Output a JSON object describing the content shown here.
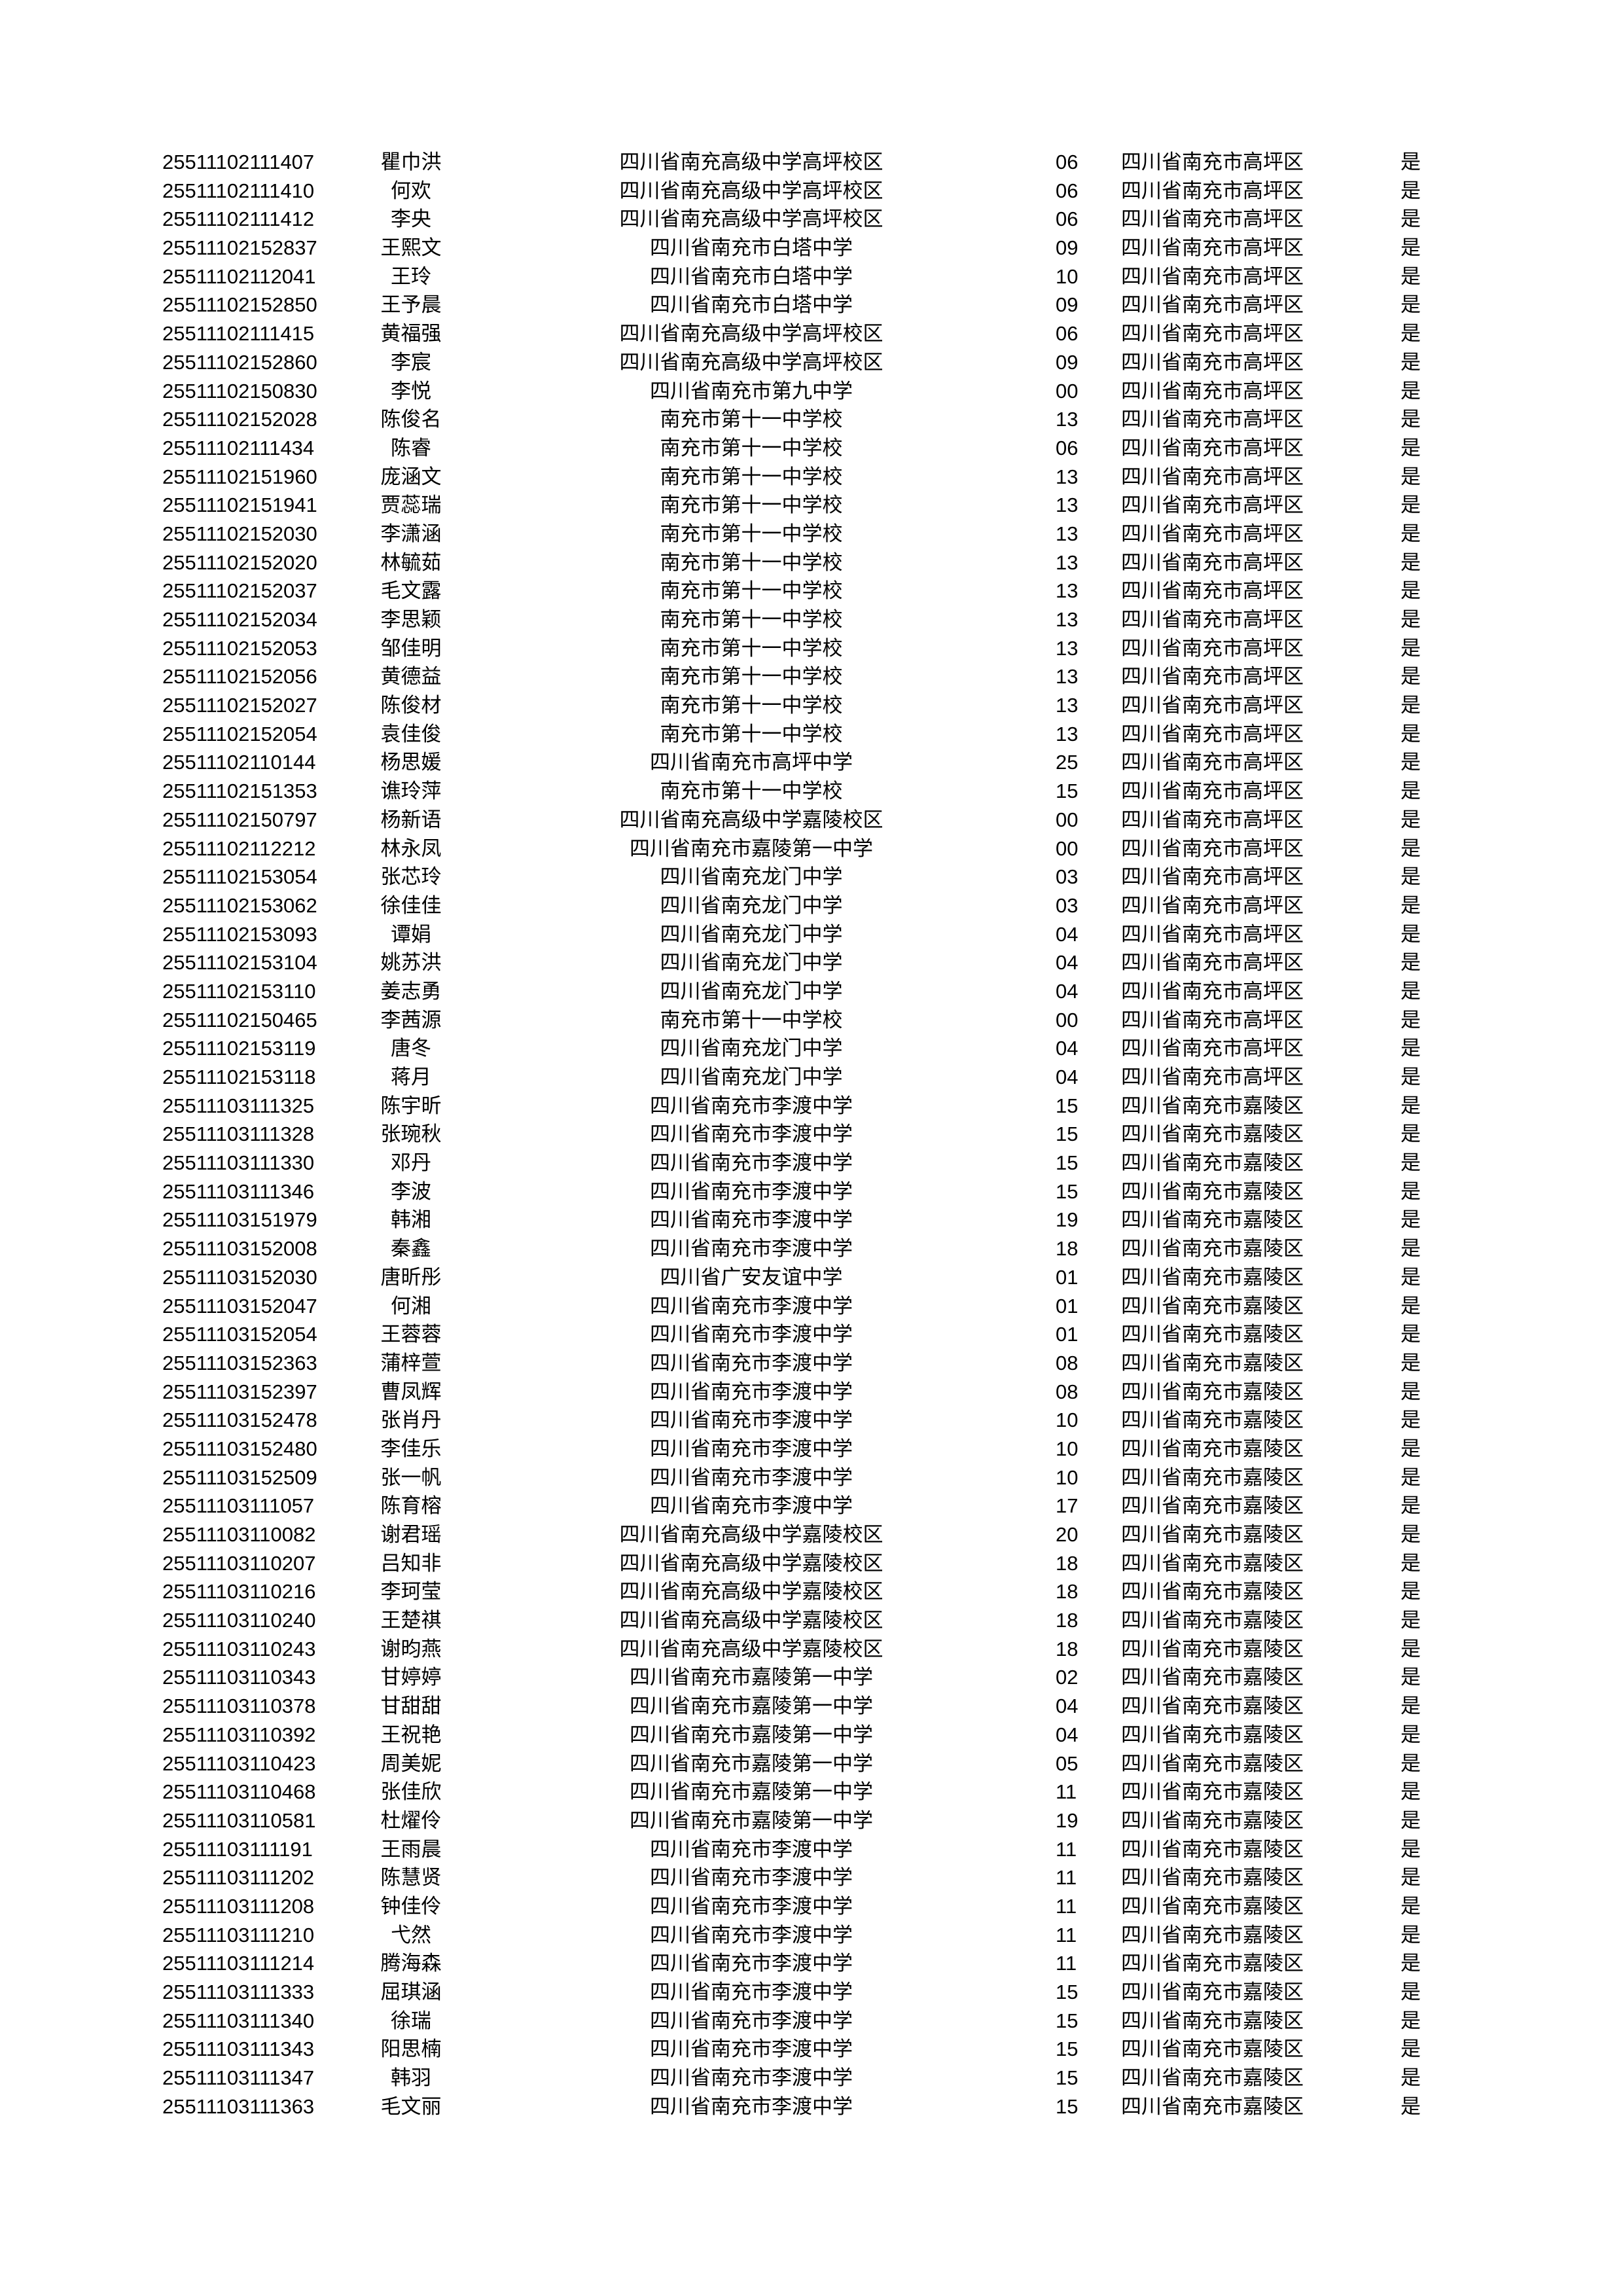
{
  "rows": [
    [
      "25511102111407",
      "瞿巾洪",
      "四川省南充高级中学高坪校区",
      "06",
      "四川省南充市高坪区",
      "是"
    ],
    [
      "25511102111410",
      "何欢",
      "四川省南充高级中学高坪校区",
      "06",
      "四川省南充市高坪区",
      "是"
    ],
    [
      "25511102111412",
      "李央",
      "四川省南充高级中学高坪校区",
      "06",
      "四川省南充市高坪区",
      "是"
    ],
    [
      "25511102152837",
      "王熙文",
      "四川省南充市白塔中学",
      "09",
      "四川省南充市高坪区",
      "是"
    ],
    [
      "25511102112041",
      "王玲",
      "四川省南充市白塔中学",
      "10",
      "四川省南充市高坪区",
      "是"
    ],
    [
      "25511102152850",
      "王予晨",
      "四川省南充市白塔中学",
      "09",
      "四川省南充市高坪区",
      "是"
    ],
    [
      "25511102111415",
      "黄福强",
      "四川省南充高级中学高坪校区",
      "06",
      "四川省南充市高坪区",
      "是"
    ],
    [
      "25511102152860",
      "李宸",
      "四川省南充高级中学高坪校区",
      "09",
      "四川省南充市高坪区",
      "是"
    ],
    [
      "25511102150830",
      "李悦",
      "四川省南充市第九中学",
      "00",
      "四川省南充市高坪区",
      "是"
    ],
    [
      "25511102152028",
      "陈俊名",
      "南充市第十一中学校",
      "13",
      "四川省南充市高坪区",
      "是"
    ],
    [
      "25511102111434",
      "陈睿",
      "南充市第十一中学校",
      "06",
      "四川省南充市高坪区",
      "是"
    ],
    [
      "25511102151960",
      "庞涵文",
      "南充市第十一中学校",
      "13",
      "四川省南充市高坪区",
      "是"
    ],
    [
      "25511102151941",
      "贾蕊瑞",
      "南充市第十一中学校",
      "13",
      "四川省南充市高坪区",
      "是"
    ],
    [
      "25511102152030",
      "李潇涵",
      "南充市第十一中学校",
      "13",
      "四川省南充市高坪区",
      "是"
    ],
    [
      "25511102152020",
      "林毓茹",
      "南充市第十一中学校",
      "13",
      "四川省南充市高坪区",
      "是"
    ],
    [
      "25511102152037",
      "毛文露",
      "南充市第十一中学校",
      "13",
      "四川省南充市高坪区",
      "是"
    ],
    [
      "25511102152034",
      "李思颖",
      "南充市第十一中学校",
      "13",
      "四川省南充市高坪区",
      "是"
    ],
    [
      "25511102152053",
      "邹佳明",
      "南充市第十一中学校",
      "13",
      "四川省南充市高坪区",
      "是"
    ],
    [
      "25511102152056",
      "黄德益",
      "南充市第十一中学校",
      "13",
      "四川省南充市高坪区",
      "是"
    ],
    [
      "25511102152027",
      "陈俊材",
      "南充市第十一中学校",
      "13",
      "四川省南充市高坪区",
      "是"
    ],
    [
      "25511102152054",
      "袁佳俊",
      "南充市第十一中学校",
      "13",
      "四川省南充市高坪区",
      "是"
    ],
    [
      "25511102110144",
      "杨思媛",
      "四川省南充市高坪中学",
      "25",
      "四川省南充市高坪区",
      "是"
    ],
    [
      "25511102151353",
      "谯玲萍",
      "南充市第十一中学校",
      "15",
      "四川省南充市高坪区",
      "是"
    ],
    [
      "25511102150797",
      "杨新语",
      "四川省南充高级中学嘉陵校区",
      "00",
      "四川省南充市高坪区",
      "是"
    ],
    [
      "25511102112212",
      "林永凤",
      "四川省南充市嘉陵第一中学",
      "00",
      "四川省南充市高坪区",
      "是"
    ],
    [
      "25511102153054",
      "张芯玲",
      "四川省南充龙门中学",
      "03",
      "四川省南充市高坪区",
      "是"
    ],
    [
      "25511102153062",
      "徐佳佳",
      "四川省南充龙门中学",
      "03",
      "四川省南充市高坪区",
      "是"
    ],
    [
      "25511102153093",
      "谭娟",
      "四川省南充龙门中学",
      "04",
      "四川省南充市高坪区",
      "是"
    ],
    [
      "25511102153104",
      "姚苏洪",
      "四川省南充龙门中学",
      "04",
      "四川省南充市高坪区",
      "是"
    ],
    [
      "25511102153110",
      "姜志勇",
      "四川省南充龙门中学",
      "04",
      "四川省南充市高坪区",
      "是"
    ],
    [
      "25511102150465",
      "李茜源",
      "南充市第十一中学校",
      "00",
      "四川省南充市高坪区",
      "是"
    ],
    [
      "25511102153119",
      "唐冬",
      "四川省南充龙门中学",
      "04",
      "四川省南充市高坪区",
      "是"
    ],
    [
      "25511102153118",
      "蒋月",
      "四川省南充龙门中学",
      "04",
      "四川省南充市高坪区",
      "是"
    ],
    [
      "25511103111325",
      "陈宇昕",
      "四川省南充市李渡中学",
      "15",
      "四川省南充市嘉陵区",
      "是"
    ],
    [
      "25511103111328",
      "张琬秋",
      "四川省南充市李渡中学",
      "15",
      "四川省南充市嘉陵区",
      "是"
    ],
    [
      "25511103111330",
      "邓丹",
      "四川省南充市李渡中学",
      "15",
      "四川省南充市嘉陵区",
      "是"
    ],
    [
      "25511103111346",
      "李波",
      "四川省南充市李渡中学",
      "15",
      "四川省南充市嘉陵区",
      "是"
    ],
    [
      "25511103151979",
      "韩湘",
      "四川省南充市李渡中学",
      "19",
      "四川省南充市嘉陵区",
      "是"
    ],
    [
      "25511103152008",
      "秦鑫",
      "四川省南充市李渡中学",
      "18",
      "四川省南充市嘉陵区",
      "是"
    ],
    [
      "25511103152030",
      "唐昕彤",
      "四川省广安友谊中学",
      "01",
      "四川省南充市嘉陵区",
      "是"
    ],
    [
      "25511103152047",
      "何湘",
      "四川省南充市李渡中学",
      "01",
      "四川省南充市嘉陵区",
      "是"
    ],
    [
      "25511103152054",
      "王蓉蓉",
      "四川省南充市李渡中学",
      "01",
      "四川省南充市嘉陵区",
      "是"
    ],
    [
      "25511103152363",
      "蒲梓萱",
      "四川省南充市李渡中学",
      "08",
      "四川省南充市嘉陵区",
      "是"
    ],
    [
      "25511103152397",
      "曹凤辉",
      "四川省南充市李渡中学",
      "08",
      "四川省南充市嘉陵区",
      "是"
    ],
    [
      "25511103152478",
      "张肖丹",
      "四川省南充市李渡中学",
      "10",
      "四川省南充市嘉陵区",
      "是"
    ],
    [
      "25511103152480",
      "李佳乐",
      "四川省南充市李渡中学",
      "10",
      "四川省南充市嘉陵区",
      "是"
    ],
    [
      "25511103152509",
      "张一帆",
      "四川省南充市李渡中学",
      "10",
      "四川省南充市嘉陵区",
      "是"
    ],
    [
      "25511103111057",
      "陈育榕",
      "四川省南充市李渡中学",
      "17",
      "四川省南充市嘉陵区",
      "是"
    ],
    [
      "25511103110082",
      "谢君瑶",
      "四川省南充高级中学嘉陵校区",
      "20",
      "四川省南充市嘉陵区",
      "是"
    ],
    [
      "25511103110207",
      "吕知非",
      "四川省南充高级中学嘉陵校区",
      "18",
      "四川省南充市嘉陵区",
      "是"
    ],
    [
      "25511103110216",
      "李珂莹",
      "四川省南充高级中学嘉陵校区",
      "18",
      "四川省南充市嘉陵区",
      "是"
    ],
    [
      "25511103110240",
      "王楚祺",
      "四川省南充高级中学嘉陵校区",
      "18",
      "四川省南充市嘉陵区",
      "是"
    ],
    [
      "25511103110243",
      "谢昀燕",
      "四川省南充高级中学嘉陵校区",
      "18",
      "四川省南充市嘉陵区",
      "是"
    ],
    [
      "25511103110343",
      "甘婷婷",
      "四川省南充市嘉陵第一中学",
      "02",
      "四川省南充市嘉陵区",
      "是"
    ],
    [
      "25511103110378",
      "甘甜甜",
      "四川省南充市嘉陵第一中学",
      "04",
      "四川省南充市嘉陵区",
      "是"
    ],
    [
      "25511103110392",
      "王祝艳",
      "四川省南充市嘉陵第一中学",
      "04",
      "四川省南充市嘉陵区",
      "是"
    ],
    [
      "25511103110423",
      "周美妮",
      "四川省南充市嘉陵第一中学",
      "05",
      "四川省南充市嘉陵区",
      "是"
    ],
    [
      "25511103110468",
      "张佳欣",
      "四川省南充市嘉陵第一中学",
      "11",
      "四川省南充市嘉陵区",
      "是"
    ],
    [
      "25511103110581",
      "杜燿伶",
      "四川省南充市嘉陵第一中学",
      "19",
      "四川省南充市嘉陵区",
      "是"
    ],
    [
      "25511103111191",
      "王雨晨",
      "四川省南充市李渡中学",
      "11",
      "四川省南充市嘉陵区",
      "是"
    ],
    [
      "25511103111202",
      "陈慧贤",
      "四川省南充市李渡中学",
      "11",
      "四川省南充市嘉陵区",
      "是"
    ],
    [
      "25511103111208",
      "钟佳伶",
      "四川省南充市李渡中学",
      "11",
      "四川省南充市嘉陵区",
      "是"
    ],
    [
      "25511103111210",
      "弋然",
      "四川省南充市李渡中学",
      "11",
      "四川省南充市嘉陵区",
      "是"
    ],
    [
      "25511103111214",
      "腾海森",
      "四川省南充市李渡中学",
      "11",
      "四川省南充市嘉陵区",
      "是"
    ],
    [
      "25511103111333",
      "屈琪涵",
      "四川省南充市李渡中学",
      "15",
      "四川省南充市嘉陵区",
      "是"
    ],
    [
      "25511103111340",
      "徐瑞",
      "四川省南充市李渡中学",
      "15",
      "四川省南充市嘉陵区",
      "是"
    ],
    [
      "25511103111343",
      "阳思楠",
      "四川省南充市李渡中学",
      "15",
      "四川省南充市嘉陵区",
      "是"
    ],
    [
      "25511103111347",
      "韩羽",
      "四川省南充市李渡中学",
      "15",
      "四川省南充市嘉陵区",
      "是"
    ],
    [
      "25511103111363",
      "毛文丽",
      "四川省南充市李渡中学",
      "15",
      "四川省南充市嘉陵区",
      "是"
    ]
  ]
}
